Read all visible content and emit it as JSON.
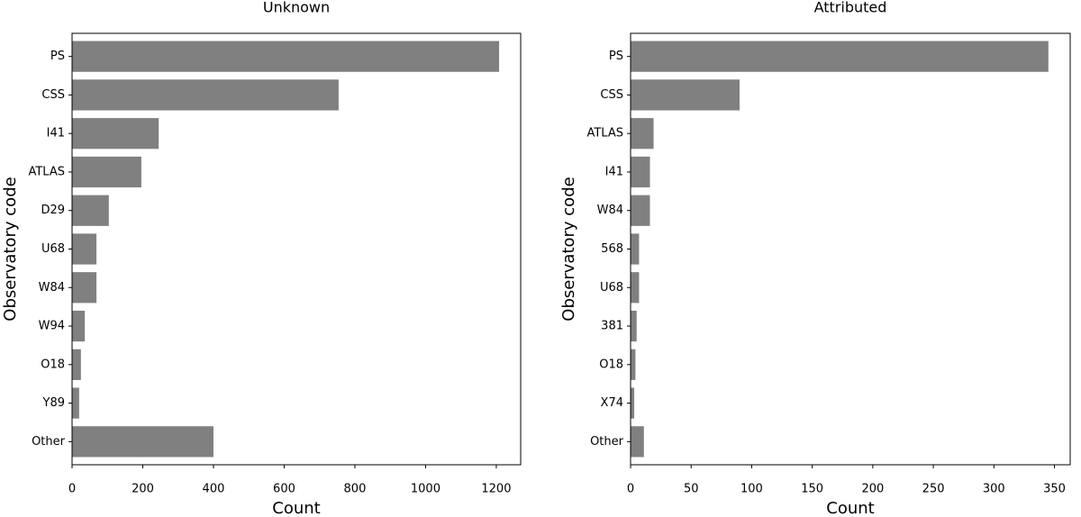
{
  "chart_data": [
    {
      "type": "barh",
      "title": "Unknown",
      "xlabel": "Count",
      "ylabel": "Observatory code",
      "categories": [
        "PS",
        "CSS",
        "I41",
        "ATLAS",
        "D29",
        "U68",
        "W84",
        "W94",
        "O18",
        "Y89",
        "Other"
      ],
      "values": [
        1208,
        754,
        245,
        196,
        104,
        69,
        69,
        36,
        25,
        20,
        400
      ],
      "color": "#808080",
      "xlim": [
        0,
        1269
      ],
      "xticks": [
        0,
        200,
        400,
        600,
        800,
        1000,
        1200
      ]
    },
    {
      "type": "barh",
      "title": "Attributed",
      "xlabel": "Count",
      "ylabel": "Observatory code",
      "categories": [
        "PS",
        "CSS",
        "ATLAS",
        "I41",
        "W84",
        "568",
        "U68",
        "381",
        "O18",
        "X74",
        "Other"
      ],
      "values": [
        345,
        90,
        19,
        16,
        16,
        7,
        7,
        5,
        4,
        3,
        11
      ],
      "color": "#808080",
      "xlim": [
        0,
        363
      ],
      "xticks": [
        0,
        50,
        100,
        150,
        200,
        250,
        300,
        350
      ]
    }
  ]
}
